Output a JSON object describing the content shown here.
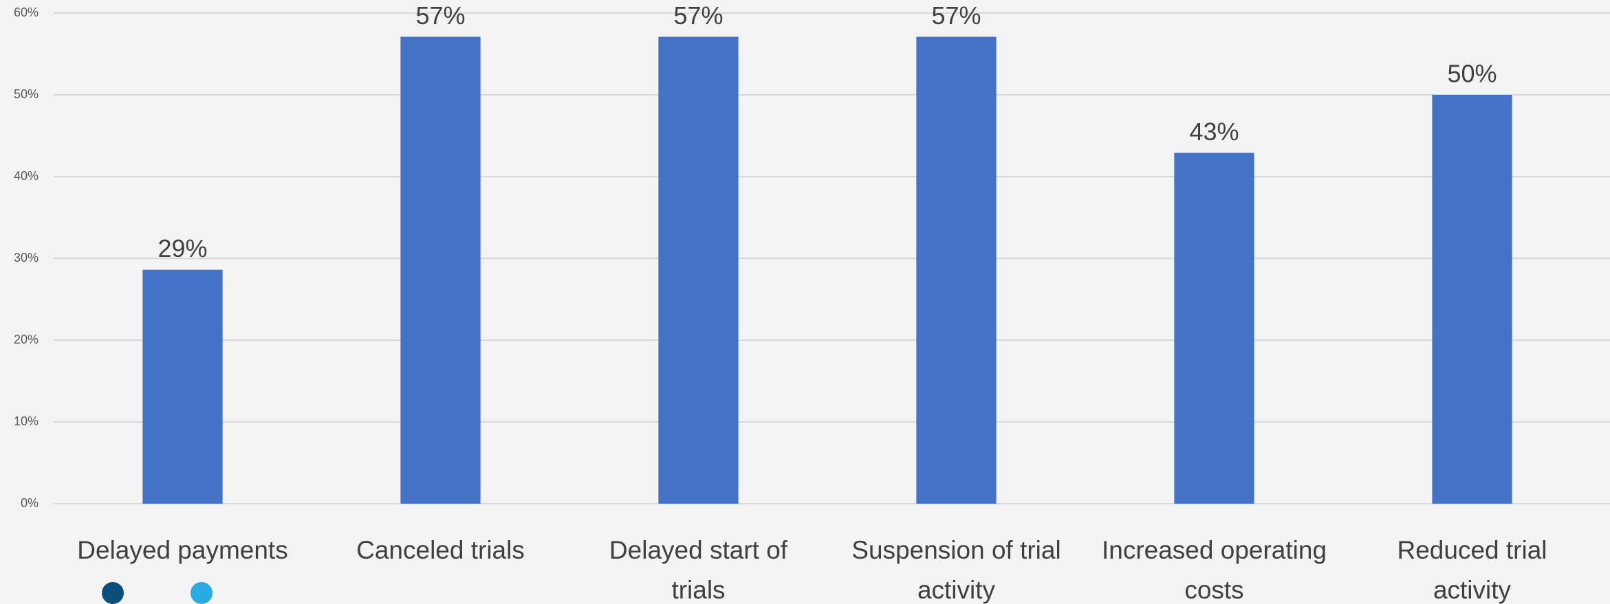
{
  "chart_data": {
    "type": "bar",
    "categories": [
      "Delayed payments",
      "Canceled trials",
      "Delayed start of trials",
      "Suspension of trial activity",
      "Increased operating costs",
      "Reduced trial activity"
    ],
    "values": [
      28.6,
      57.1,
      57.1,
      57.1,
      42.9,
      50
    ],
    "value_labels": [
      "29%",
      "57%",
      "57%",
      "57%",
      "43%",
      "50%"
    ],
    "color": "#4472c4",
    "ylim": [
      0,
      60
    ],
    "yticks": [
      {
        "value": 0,
        "label": "0%"
      },
      {
        "value": 10,
        "label": "10%"
      },
      {
        "value": 20,
        "label": "20%"
      },
      {
        "value": 30,
        "label": "30%"
      },
      {
        "value": 40,
        "label": "40%"
      },
      {
        "value": 50,
        "label": "50%"
      },
      {
        "value": 60,
        "label": "60%"
      }
    ],
    "grid": true
  }
}
